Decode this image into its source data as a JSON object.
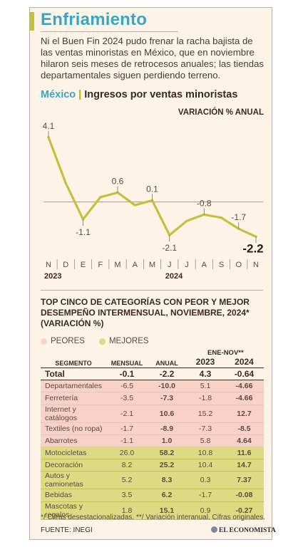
{
  "header": {
    "title": "Enfriamiento",
    "intro": "Ni el Buen Fin 2024 pudo frenar la racha bajista de las ventas minoristas en México, que en noviembre hilaron seis meses de retrocesos anuales; las tiendas departamentales siguen perdiendo terreno."
  },
  "chart_head": {
    "country": "México",
    "separator": "|",
    "subject": "Ingresos por ventas minoristas"
  },
  "colors": {
    "line": "#c4c13d",
    "accent": "#3aa6c4",
    "worst": "#f8d2c6",
    "best": "#ded983"
  },
  "chart_data": {
    "type": "line",
    "ylabel": "VARIACIÓN % ANUAL",
    "categories": [
      "N",
      "D",
      "E",
      "F",
      "M",
      "A",
      "M",
      "J",
      "J",
      "A",
      "S",
      "O",
      "N"
    ],
    "year_labels": [
      {
        "label": "2023",
        "index": 0
      },
      {
        "label": "2024",
        "index": 7
      }
    ],
    "series": [
      {
        "values": [
          4.1,
          1.2,
          -1.1,
          0.3,
          0.6,
          -0.2,
          0.1,
          -2.1,
          -1.2,
          -0.8,
          -1.0,
          -1.7,
          -2.2
        ]
      }
    ],
    "data_labels": [
      {
        "index": 0,
        "text": "4.1"
      },
      {
        "index": 2,
        "text": "-1.1"
      },
      {
        "index": 4,
        "text": "0.6"
      },
      {
        "index": 6,
        "text": "0.1"
      },
      {
        "index": 7,
        "text": "-2.1"
      },
      {
        "index": 9,
        "text": "-0.8"
      },
      {
        "index": 11,
        "text": "-1.7"
      },
      {
        "index": 12,
        "text": "-2.2",
        "emphasis": true
      }
    ],
    "ylim": [
      -3.0,
      4.5
    ],
    "zero_line": true
  },
  "table": {
    "title": "TOP CINCO DE CATEGORÍAS CON PEOR Y MEJOR DESEMPEÑO INTERMENSUAL, NOVIEMBRE, 2024* (VARIACIÓN %)",
    "legend_worst": "PEORES",
    "legend_best": "MEJORES",
    "period_label": "ENE-NOV**",
    "columns": [
      "SEGMENTO",
      "MENSUAL",
      "ANUAL",
      "2023",
      "2024"
    ],
    "total": {
      "segment": "Total",
      "mensual": "-0.1",
      "anual": "-2.2",
      "y2023": "4.3",
      "y2024": "-0.64"
    },
    "worst": [
      {
        "segment": "Departamentales",
        "mensual": "-6.5",
        "anual": "-10.0",
        "y2023": "5.1",
        "y2024": "-4.66"
      },
      {
        "segment": "Ferretería",
        "mensual": "-3.5",
        "anual": "-7.3",
        "y2023": "-1.8",
        "y2024": "-4.66"
      },
      {
        "segment": "Internet y catálogos",
        "mensual": "-2.1",
        "anual": "10.6",
        "y2023": "15.2",
        "y2024": "12.7"
      },
      {
        "segment": "Textiles (no ropa)",
        "mensual": "-1.7",
        "anual": "-8.9",
        "y2023": "-7.3",
        "y2024": "-8.5"
      },
      {
        "segment": "Abarrotes",
        "mensual": "-1.1",
        "anual": "1.0",
        "y2023": "5.8",
        "y2024": "4.64"
      }
    ],
    "best": [
      {
        "segment": "Motocicletas",
        "mensual": "26.0",
        "anual": "58.2",
        "y2023": "10.8",
        "y2024": "11.6"
      },
      {
        "segment": "Decoración",
        "mensual": "8.2",
        "anual": "25.2",
        "y2023": "10.4",
        "y2024": "14.7"
      },
      {
        "segment": "Autos y camionetas",
        "mensual": "5.2",
        "anual": "8.3",
        "y2023": "0.3",
        "y2024": "7.37"
      },
      {
        "segment": "Bebidas",
        "mensual": "3.5",
        "anual": "6.2",
        "y2023": "-1.7",
        "y2024": "-0.08"
      },
      {
        "segment": "Mascotas y regalos",
        "mensual": "1.8",
        "anual": "15.1",
        "y2023": "0.9",
        "y2024": "-0.27"
      }
    ]
  },
  "footer": {
    "footnote": "*/ Cifras desestacionalizadas. **/ Variación interanual. Cifras originales.",
    "source": "FUENTE: INEGI",
    "brand": "EL ECONOMISTA"
  }
}
